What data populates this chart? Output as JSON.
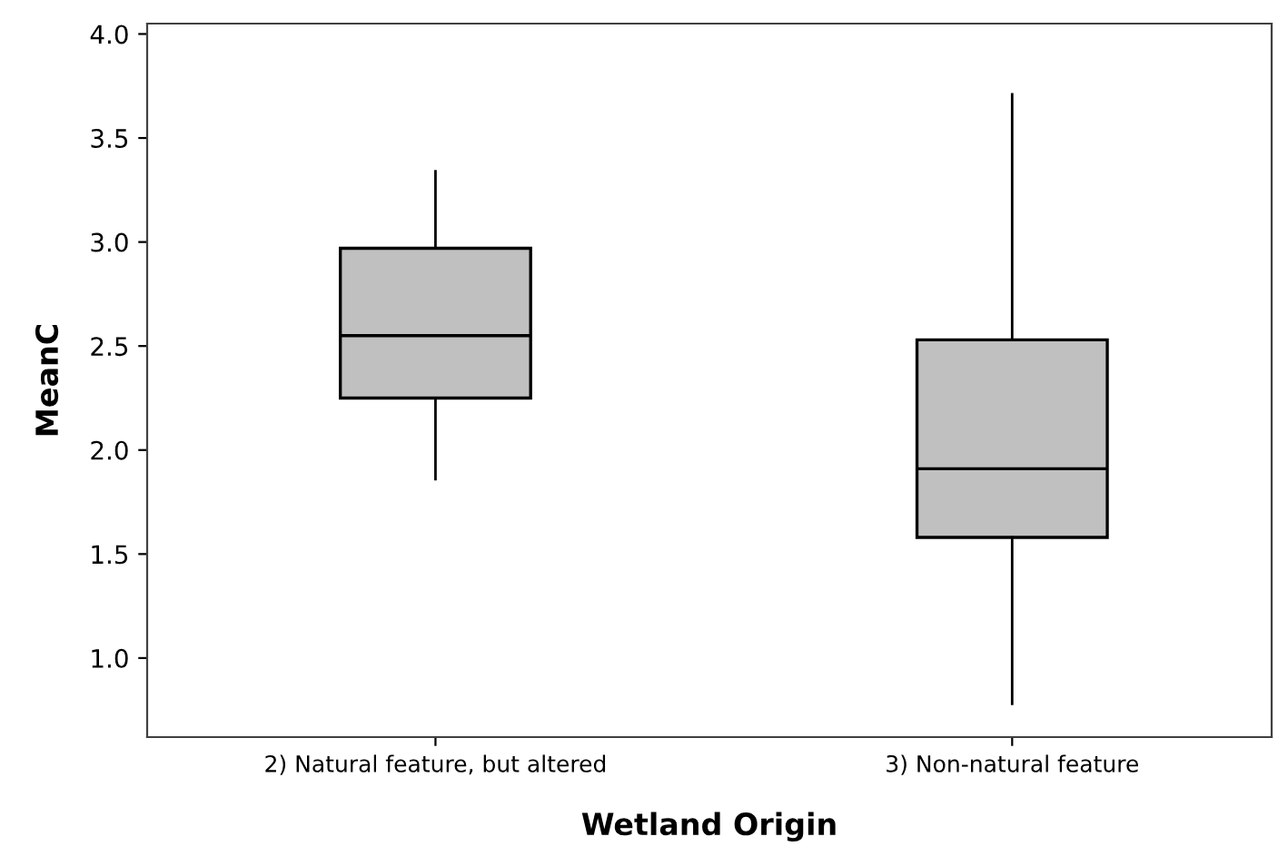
{
  "chart_data": {
    "type": "box",
    "xlabel": "Wetland Origin",
    "ylabel": "MeanC",
    "categories": [
      "2) Natural feature, but altered",
      "3) Non-natural feature"
    ],
    "boxes": [
      {
        "low": 1.86,
        "q1": 2.25,
        "median": 2.55,
        "q3": 2.97,
        "high": 3.34
      },
      {
        "low": 0.78,
        "q1": 1.58,
        "median": 1.91,
        "q3": 2.53,
        "high": 3.71
      }
    ],
    "color": "#c0c0c0",
    "ylim": [
      0.62,
      4.05
    ],
    "yticks": [
      {
        "value": 1.0,
        "label": "1.0"
      },
      {
        "value": 1.5,
        "label": "1.5"
      },
      {
        "value": 2.0,
        "label": "2.0"
      },
      {
        "value": 2.5,
        "label": "2.5"
      },
      {
        "value": 3.0,
        "label": "3.0"
      },
      {
        "value": 3.5,
        "label": "3.5"
      },
      {
        "value": 4.0,
        "label": "4.0"
      }
    ],
    "grid": false
  }
}
